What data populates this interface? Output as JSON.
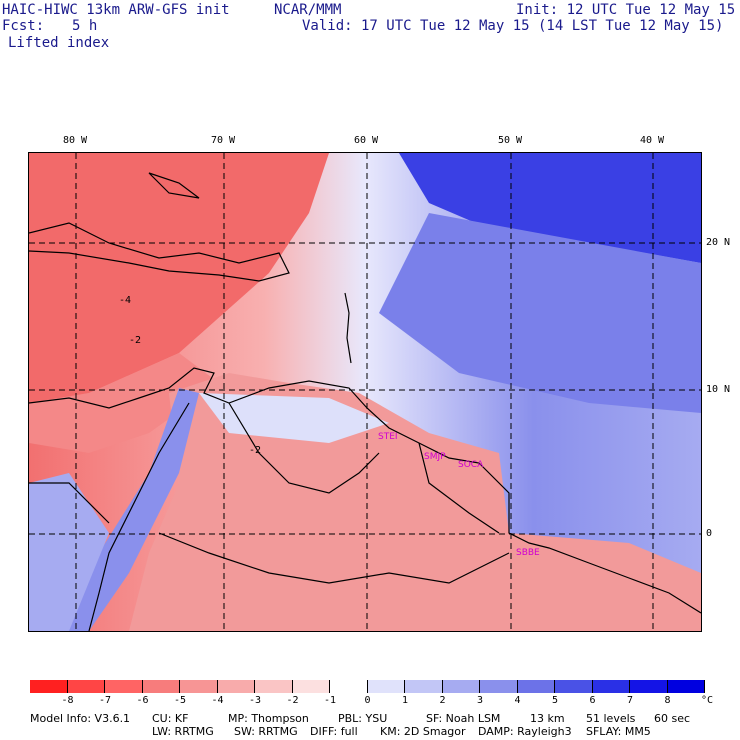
{
  "header": {
    "model_title": "HAIC-HIWC 13km ARW-GFS init",
    "org": "NCAR/MMM",
    "init": "Init: 12 UTC Tue 12 May 15",
    "fcst_label": "Fcst:",
    "fcst_value": "5 h",
    "valid": "Valid: 17 UTC Tue 12 May 15 (14 LST Tue 12 May 15)",
    "field": "Lifted index"
  },
  "map": {
    "lon_labels": [
      "80 W",
      "70 W",
      "60 W",
      "50 W",
      "40 W"
    ],
    "lat_labels": [
      "20 N",
      "10 N",
      "0"
    ],
    "stations": [
      "STEI",
      "SMJP",
      "SOCA",
      "SBBE"
    ],
    "contour_labels": [
      "-4",
      "-2",
      "-2"
    ]
  },
  "legend": {
    "ticks": [
      "-8",
      "-7",
      "-6",
      "-5",
      "-4",
      "-3",
      "-2",
      "-1",
      "0",
      "1",
      "2",
      "3",
      "4",
      "5",
      "6",
      "7",
      "8"
    ],
    "unit": "°C",
    "colors": [
      "#ff2020",
      "#ff4545",
      "#ff6464",
      "#f77c7c",
      "#f79595",
      "#f8abab",
      "#fac5c5",
      "#fce0e0",
      "#ffffff",
      "#e0e2fb",
      "#c2c6f6",
      "#a6abf1",
      "#8a90ec",
      "#6c72e8",
      "#4a52e6",
      "#2a30e6",
      "#1414e6",
      "#0000e0"
    ]
  },
  "model_info": {
    "line1": [
      "Model Info: V3.6.1",
      "CU: KF",
      "MP: Thompson",
      "PBL: YSU",
      "SF: Noah LSM",
      "13 km",
      "51 levels",
      "60 sec"
    ],
    "line2": [
      "LW: RRTMG",
      "SW: RRTMG",
      "DIFF: full",
      "KM: 2D Smagor",
      "DAMP: Rayleigh3",
      "SFLAY: MM5"
    ]
  }
}
